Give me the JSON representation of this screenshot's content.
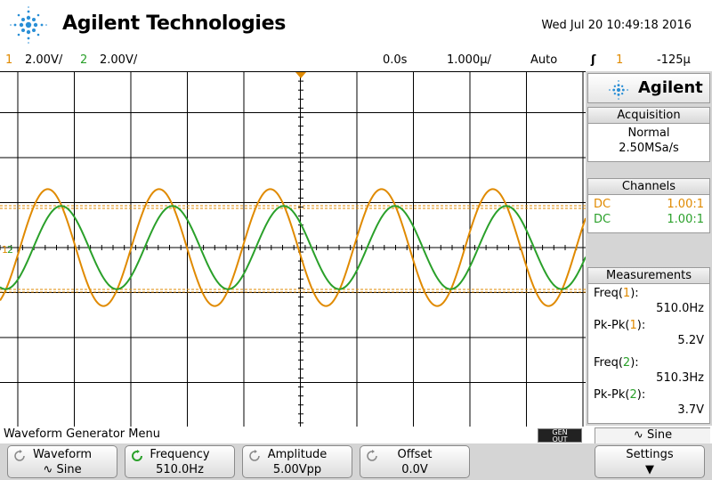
{
  "header": {
    "brand": "Agilent Technologies",
    "datetime": "Wed Jul 20 10:49:18 2016"
  },
  "status": {
    "ch1_num": "1",
    "ch1_scale": "2.00V/",
    "ch2_num": "2",
    "ch2_scale": "2.00V/",
    "time_offset": "0.0s",
    "time_scale": "1.000µ/",
    "trigger_mode": "Auto",
    "trigger_slope_icon": "rising-edge-icon",
    "trigger_source": "1",
    "trigger_level": "-125µ"
  },
  "panel": {
    "brand": "Agilent",
    "acquisition": {
      "title": "Acquisition",
      "mode": "Normal",
      "rate": "2.50MSa/s"
    },
    "channels": {
      "title": "Channels",
      "rows": [
        {
          "coupling": "DC",
          "probe": "1.00:1"
        },
        {
          "coupling": "DC",
          "probe": "1.00:1"
        }
      ]
    },
    "measurements": {
      "title": "Measurements",
      "items": [
        {
          "label": "Freq(",
          "ch": "1",
          "close": "):",
          "value": "510.0Hz"
        },
        {
          "label": "Pk-Pk(",
          "ch": "1",
          "close": "):",
          "value": "5.2V"
        },
        {
          "label": "Freq(",
          "ch": "2",
          "close": "):",
          "value": "510.3Hz"
        },
        {
          "label": "Pk-Pk(",
          "ch": "2",
          "close": "):",
          "value": "3.7V"
        }
      ]
    }
  },
  "bottom": {
    "menu_label": "Waveform Generator Menu",
    "gen_out_line1": "GEN",
    "gen_out_line2": "OUT",
    "wave_indicator": "Sine",
    "softkeys": [
      {
        "top": "Waveform",
        "bottom": "Sine"
      },
      {
        "top": "Frequency",
        "bottom": "510.0Hz"
      },
      {
        "top": "Amplitude",
        "bottom": "5.00Vpp"
      },
      {
        "top": "Offset",
        "bottom": "0.0V"
      },
      {
        "top": "Settings",
        "bottom": ""
      }
    ]
  },
  "colors": {
    "ch1": "#e08a00",
    "ch2": "#2aa02a"
  },
  "chart_data": {
    "type": "line",
    "series": [
      {
        "frequency_hz": 510.0,
        "pk_pk_v": 5.2,
        "offset_v": 0.0
      },
      {
        "frequency_hz": 510.3,
        "pk_pk_v": 3.7,
        "offset_v": 0.0
      }
    ],
    "grid": true,
    "x_divisions": 10,
    "y_divisions": 8
  }
}
